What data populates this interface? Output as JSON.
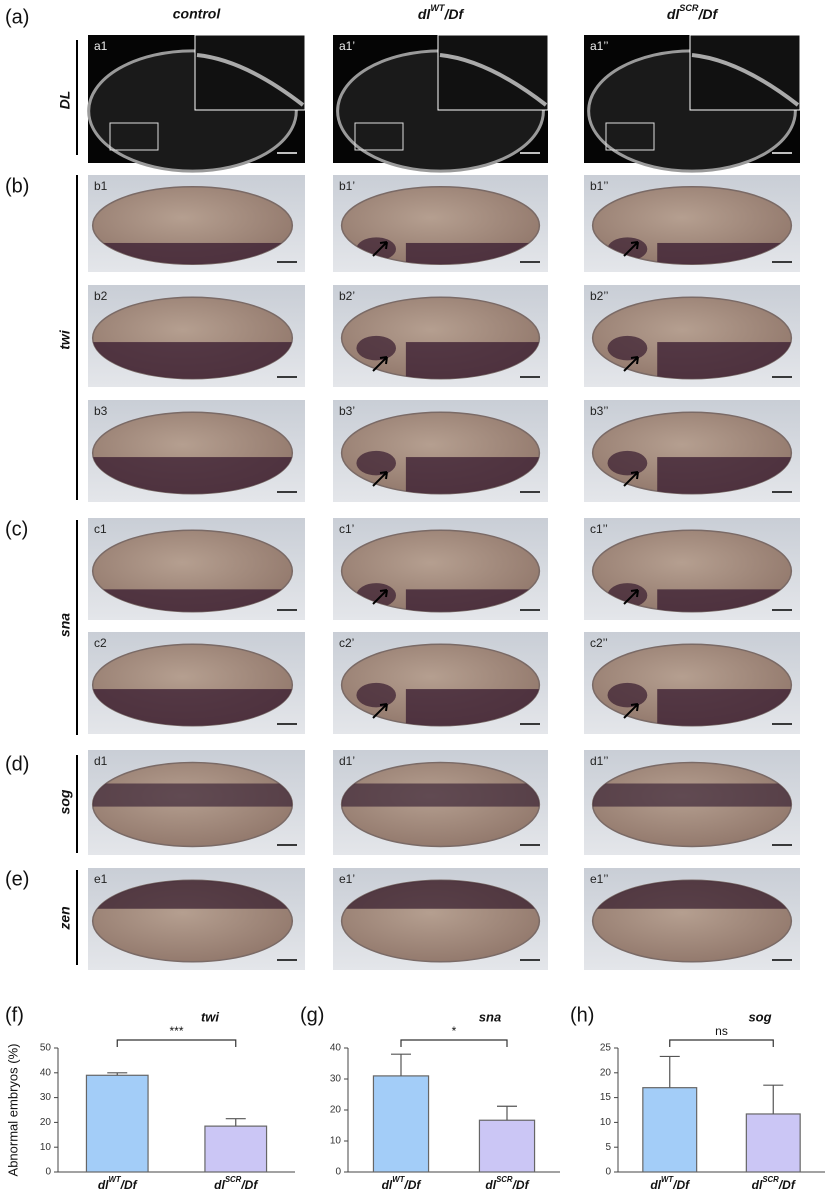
{
  "figure": {
    "columns": [
      "control",
      {
        "base": "dl",
        "sup": "WT",
        "rest": "/Df"
      },
      {
        "base": "dl",
        "sup": "SCR",
        "rest": "/Df"
      }
    ],
    "rows": [
      {
        "panel": "(a)",
        "gene": "DL",
        "images": [
          [
            "a1",
            "a1’",
            "a1’’"
          ]
        ]
      },
      {
        "panel": "(b)",
        "gene": "twi",
        "images": [
          [
            "b1",
            "b1’",
            "b1’’"
          ],
          [
            "b2",
            "b2’",
            "b2’’"
          ],
          [
            "b3",
            "b3’",
            "b3’’"
          ]
        ]
      },
      {
        "panel": "(c)",
        "gene": "sna",
        "images": [
          [
            "c1",
            "c1’",
            "c1’’"
          ],
          [
            "c2",
            "c2’",
            "c2’’"
          ]
        ]
      },
      {
        "panel": "(d)",
        "gene": "sog",
        "images": [
          [
            "d1",
            "d1’",
            "d1’’"
          ]
        ]
      },
      {
        "panel": "(e)",
        "gene": "zen",
        "images": [
          [
            "e1",
            "e1’",
            "e1’’"
          ]
        ]
      }
    ]
  },
  "chart_data": [
    {
      "type": "bar",
      "panel": "(f)",
      "title": "twi",
      "y_label": "Abnormal embryos (%)",
      "categories": [
        {
          "base": "dl",
          "sup": "WT",
          "rest": "/Df"
        },
        {
          "base": "dl",
          "sup": "SCR",
          "rest": "/Df"
        }
      ],
      "values": [
        39,
        18.5
      ],
      "errors": [
        1,
        3
      ],
      "colors": [
        "#a3cdf8",
        "#cbc6f5"
      ],
      "ylim": [
        0,
        50
      ],
      "yticks": [
        0,
        10,
        20,
        30,
        40,
        50
      ],
      "significance": "***"
    },
    {
      "type": "bar",
      "panel": "(g)",
      "title": "sna",
      "categories": [
        {
          "base": "dl",
          "sup": "WT",
          "rest": "/Df"
        },
        {
          "base": "dl",
          "sup": "SCR",
          "rest": "/Df"
        }
      ],
      "values": [
        31,
        16.7
      ],
      "errors": [
        7,
        4.5
      ],
      "colors": [
        "#a3cdf8",
        "#cbc6f5"
      ],
      "ylim": [
        0,
        40
      ],
      "yticks": [
        0,
        10,
        20,
        30,
        40
      ],
      "significance": "*"
    },
    {
      "type": "bar",
      "panel": "(h)",
      "title": "sog",
      "categories": [
        {
          "base": "dl",
          "sup": "WT",
          "rest": "/Df"
        },
        {
          "base": "dl",
          "sup": "SCR",
          "rest": "/Df"
        }
      ],
      "values": [
        17,
        11.7
      ],
      "errors": [
        6.3,
        5.8
      ],
      "colors": [
        "#a3cdf8",
        "#cbc6f5"
      ],
      "ylim": [
        0,
        25
      ],
      "yticks": [
        0,
        5,
        10,
        15,
        20,
        25
      ],
      "significance": "ns"
    }
  ]
}
